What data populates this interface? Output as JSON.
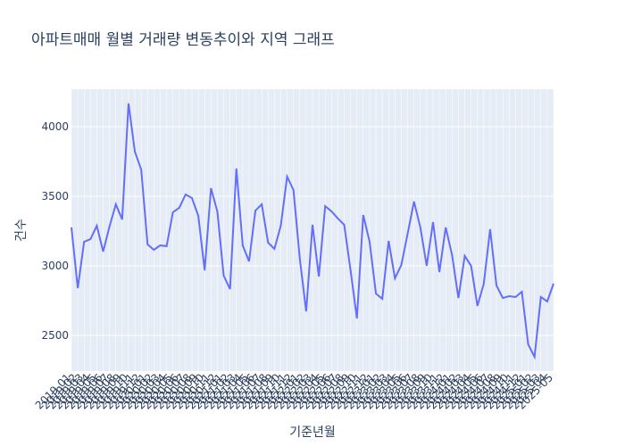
{
  "chart_data": {
    "type": "line",
    "title": "아파트매매 월별 거래량 변동추이와 지역 그래프",
    "x_label": "기준년월",
    "y_label": "건수",
    "categories": [
      "2019-01",
      "2019-02",
      "2019-03",
      "2019-04",
      "2019-05",
      "2019-06",
      "2019-07",
      "2019-08",
      "2019-09",
      "2019-10",
      "2019-11",
      "2019-12",
      "2020-01",
      "2020-02",
      "2020-03",
      "2020-04",
      "2020-05",
      "2020-06",
      "2020-07",
      "2020-08",
      "2020-09",
      "2020-10",
      "2020-11",
      "2020-12",
      "2021-01",
      "2021-02",
      "2021-03",
      "2021-04",
      "2021-05",
      "2021-06",
      "2021-07",
      "2021-08",
      "2021-09",
      "2021-10",
      "2021-11",
      "2021-12",
      "2022-01",
      "2022-02",
      "2022-03",
      "2022-04",
      "2022-05",
      "2022-06",
      "2022-07",
      "2022-08",
      "2022-09",
      "2022-10",
      "2022-11",
      "2022-12",
      "2023-01",
      "2023-02",
      "2023-03",
      "2023-04",
      "2023-05",
      "2023-06",
      "2023-07",
      "2023-08",
      "2023-09",
      "2023-10",
      "2023-11",
      "2023-12",
      "2024-01",
      "2024-02",
      "2024-03",
      "2024-04",
      "2024-05",
      "2024-06",
      "2024-07",
      "2024-08",
      "2024-09",
      "2024-10",
      "2024-11",
      "2024-12",
      "2025-01",
      "2025-02",
      "2025-03",
      "2025-04",
      "2025-05"
    ],
    "series": [
      {
        "name": "건수",
        "color": "#636efa",
        "values": [
          3276,
          2840,
          3173,
          3192,
          3288,
          3103,
          3282,
          3442,
          3333,
          4167,
          3820,
          3692,
          3154,
          3115,
          3147,
          3141,
          3385,
          3417,
          3513,
          3487,
          3359,
          2968,
          3558,
          3391,
          2929,
          2833,
          3699,
          3147,
          3032,
          3397,
          3442,
          3167,
          3122,
          3288,
          3641,
          3545,
          3051,
          2673,
          3295,
          2923,
          3429,
          3391,
          3340,
          3295,
          2968,
          2622,
          3365,
          3173,
          2801,
          2763,
          3179,
          2910,
          3006,
          3231,
          3462,
          3276,
          3000,
          3314,
          2955,
          3276,
          3077,
          2769,
          3071,
          3000,
          2712,
          2872,
          3263,
          2859,
          2769,
          2782,
          2776,
          2814,
          2436,
          2346,
          2776,
          2744,
          2872
        ]
      }
    ],
    "ylim": [
      2244,
      4269
    ],
    "yticks": [
      2500,
      3000,
      3500,
      4000
    ],
    "grid": true
  }
}
